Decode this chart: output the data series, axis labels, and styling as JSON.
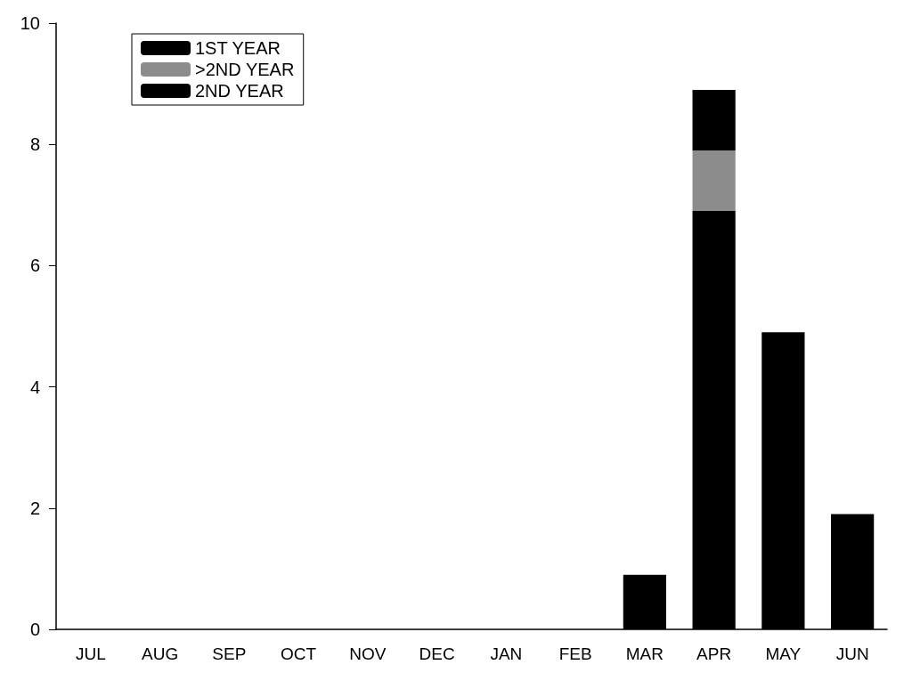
{
  "chart_data": {
    "type": "bar",
    "stacked": true,
    "categories": [
      "JUL",
      "AUG",
      "SEP",
      "OCT",
      "NOV",
      "DEC",
      "JAN",
      "FEB",
      "MAR",
      "APR",
      "MAY",
      "JUN"
    ],
    "series": [
      {
        "name": "1ST YEAR",
        "color": "#000000",
        "values": [
          0,
          0,
          0,
          0,
          0,
          0,
          0,
          0,
          0.9,
          6.9,
          4.9,
          1.9
        ]
      },
      {
        "name": ">2ND YEAR",
        "color": "#8c8c8c",
        "values": [
          0,
          0,
          0,
          0,
          0,
          0,
          0,
          0,
          0,
          1.0,
          0,
          0
        ]
      },
      {
        "name": "2ND YEAR",
        "color": "#000000",
        "values": [
          0,
          0,
          0,
          0,
          0,
          0,
          0,
          0,
          0,
          1.0,
          0,
          0
        ]
      }
    ],
    "ylim": [
      0,
      10
    ],
    "yticks": [
      0,
      2,
      4,
      6,
      8,
      10
    ],
    "grid": false,
    "legend": "top left"
  }
}
